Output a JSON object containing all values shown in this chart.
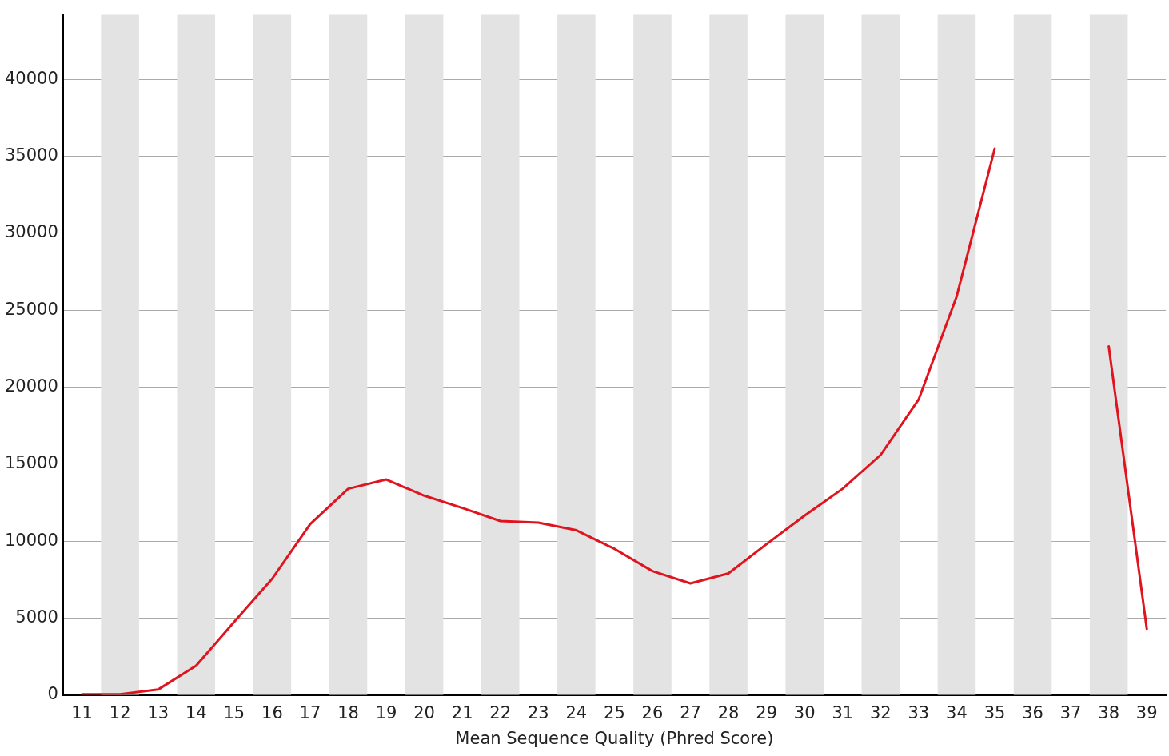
{
  "chart_data": {
    "type": "line",
    "xlabel": "Mean Sequence Quality (Phred Score)",
    "categories": [
      "11",
      "12",
      "13",
      "14",
      "15",
      "16",
      "17",
      "18",
      "19",
      "20",
      "21",
      "22",
      "23",
      "24",
      "25",
      "26",
      "27",
      "28",
      "29",
      "30",
      "31",
      "32",
      "33",
      "34",
      "35",
      "36",
      "37",
      "38",
      "39"
    ],
    "series": [
      {
        "color": "#e0141e",
        "values": [
          50,
          50,
          350,
          1900,
          4750,
          7550,
          11100,
          13400,
          14000,
          12950,
          12150,
          11300,
          11200,
          10700,
          9500,
          8050,
          7250,
          7900,
          9800,
          11650,
          13400,
          15600,
          19200,
          25900,
          35500,
          null,
          null,
          22650,
          4300
        ]
      }
    ],
    "ylim": [
      0,
      44200
    ],
    "yticks": [
      0,
      5000,
      10000,
      15000,
      20000,
      25000,
      30000,
      35000,
      40000
    ],
    "grid": "y",
    "marker": "none",
    "line_style": "solid",
    "legend": false
  }
}
